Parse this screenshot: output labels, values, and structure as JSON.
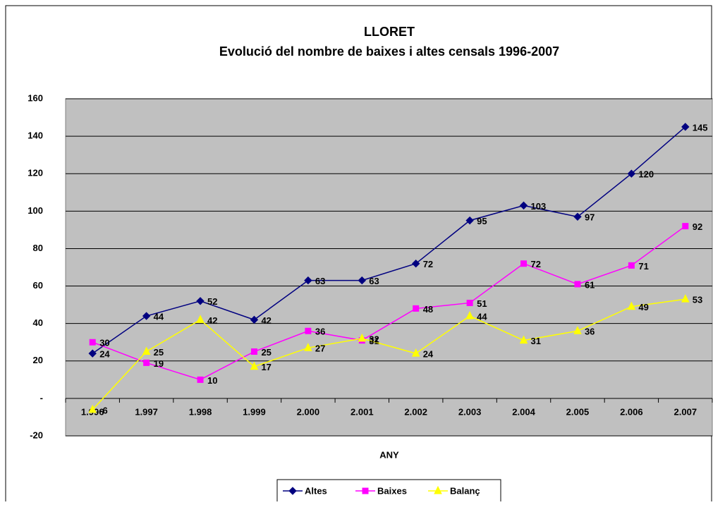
{
  "chart_data": {
    "type": "line",
    "title": "LLORET",
    "subtitle": "Evolució del nombre de baixes i altes censals 1996-2007",
    "x_label": "ANY",
    "categories": [
      "1.996",
      "1.997",
      "1.998",
      "1.999",
      "2.000",
      "2.001",
      "2.002",
      "2.003",
      "2.004",
      "2.005",
      "2.006",
      "2.007"
    ],
    "series": [
      {
        "name": "Altes",
        "color": "#000080",
        "marker": "diamond",
        "values": [
          24,
          44,
          52,
          42,
          63,
          63,
          72,
          95,
          103,
          97,
          120,
          145
        ]
      },
      {
        "name": "Baixes",
        "color": "#ff00ff",
        "marker": "square",
        "values": [
          30,
          19,
          10,
          25,
          36,
          31,
          48,
          51,
          72,
          61,
          71,
          92
        ]
      },
      {
        "name": "Balanç",
        "color": "#ffff00",
        "marker": "triangle",
        "values": [
          -6,
          25,
          42,
          17,
          27,
          32,
          24,
          44,
          31,
          36,
          49,
          53
        ]
      }
    ],
    "ylim": [
      -20,
      160
    ],
    "yticks": [
      -20,
      {
        "value": 0,
        "label": "-"
      },
      20,
      40,
      60,
      80,
      100,
      120,
      140,
      160
    ],
    "grid": true,
    "legend": "bottom"
  }
}
